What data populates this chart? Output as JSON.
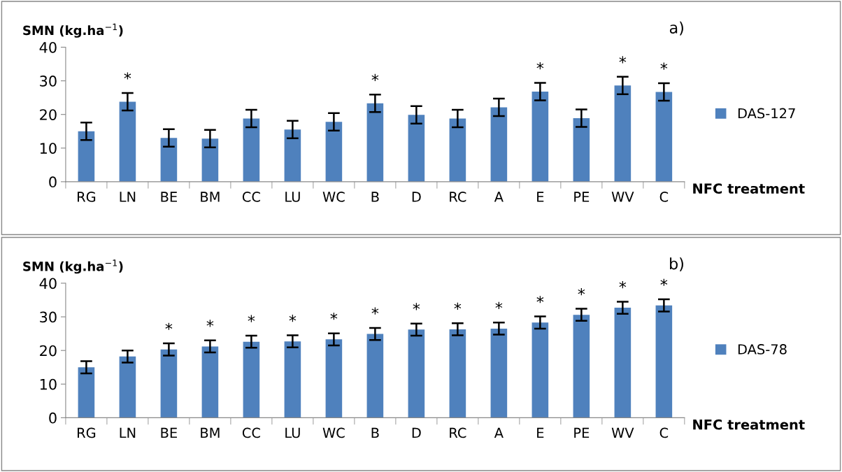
{
  "chart_data": [
    {
      "type": "bar",
      "title": "a)",
      "ylabel": "SMN (kg.ha$^{−1}$)",
      "xlabel": "NFC treatment",
      "categories": [
        "RG",
        "LN",
        "BE",
        "BM",
        "CC",
        "LU",
        "WC",
        "B",
        "D",
        "RC",
        "A",
        "E",
        "PE",
        "WV",
        "C"
      ],
      "series": [
        {
          "name": "DAS-127",
          "color": "#4f81bd",
          "values": [
            15,
            23.8,
            13,
            12.8,
            18.8,
            15.5,
            17.8,
            23.3,
            19.9,
            18.8,
            22.1,
            26.8,
            18.9,
            28.6,
            26.7
          ],
          "errors": [
            2.6,
            2.6,
            2.6,
            2.6,
            2.6,
            2.6,
            2.6,
            2.6,
            2.6,
            2.6,
            2.6,
            2.6,
            2.6,
            2.6,
            2.6
          ]
        }
      ],
      "ylim": [
        0,
        40
      ],
      "yticks": [
        0,
        10,
        20,
        30,
        40
      ],
      "grid": false,
      "legend": "right",
      "annotations": [
        {
          "text": "*",
          "x": "LN",
          "y": 23.8
        },
        {
          "text": "*",
          "x": "B",
          "y": 23.3
        },
        {
          "text": "*",
          "x": "E",
          "y": 26.8
        },
        {
          "text": "*",
          "x": "WV",
          "y": 28.6
        },
        {
          "text": "*",
          "x": "C",
          "y": 26.7
        }
      ]
    },
    {
      "type": "bar",
      "title": "b)",
      "ylabel": "SMN (kg.ha$^{−1}$)",
      "xlabel": "NFC treatment",
      "categories": [
        "RG",
        "LN",
        "BE",
        "BM",
        "CC",
        "LU",
        "WC",
        "B",
        "D",
        "RC",
        "A",
        "E",
        "PE",
        "WV",
        "C"
      ],
      "series": [
        {
          "name": "DAS-78",
          "color": "#4f81bd",
          "values": [
            15,
            18.2,
            20.3,
            21.2,
            22.6,
            22.7,
            23.3,
            24.9,
            26.2,
            26.3,
            26.5,
            28.3,
            30.6,
            32.7,
            33.4
          ],
          "errors": [
            1.8,
            1.8,
            1.8,
            1.8,
            1.8,
            1.8,
            1.8,
            1.8,
            1.8,
            1.8,
            1.8,
            1.8,
            1.8,
            1.8,
            1.8
          ]
        }
      ],
      "ylim": [
        0,
        40
      ],
      "yticks": [
        0,
        10,
        20,
        30,
        40
      ],
      "grid": false,
      "legend": "right",
      "annotations": [
        {
          "text": "*",
          "x": "BE",
          "y": 20.3
        },
        {
          "text": "*",
          "x": "BM",
          "y": 21.2
        },
        {
          "text": "*",
          "x": "CC",
          "y": 22.6
        },
        {
          "text": "*",
          "x": "LU",
          "y": 22.7
        },
        {
          "text": "*",
          "x": "WC",
          "y": 23.3
        },
        {
          "text": "*",
          "x": "B",
          "y": 24.9
        },
        {
          "text": "*",
          "x": "D",
          "y": 26.2
        },
        {
          "text": "*",
          "x": "RC",
          "y": 26.3
        },
        {
          "text": "*",
          "x": "A",
          "y": 26.5
        },
        {
          "text": "*",
          "x": "E",
          "y": 28.3
        },
        {
          "text": "*",
          "x": "PE",
          "y": 30.6
        },
        {
          "text": "*",
          "x": "WV",
          "y": 32.7
        },
        {
          "text": "*",
          "x": "C",
          "y": 33.4
        }
      ]
    }
  ]
}
